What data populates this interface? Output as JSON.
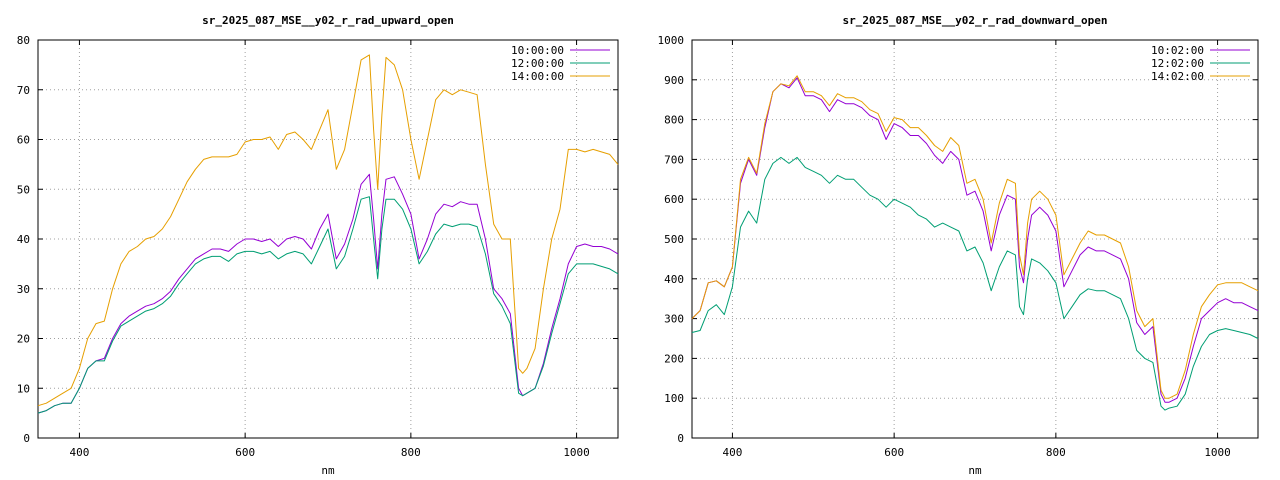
{
  "chart_data": [
    {
      "type": "line",
      "title": "sr_2025_087_MSE__y02_r_rad_upward_open",
      "xlabel": "nm",
      "ylabel": "",
      "xlim": [
        350,
        1050
      ],
      "ylim": [
        0,
        80
      ],
      "xticks": [
        400,
        600,
        800,
        1000
      ],
      "yticks": [
        0,
        10,
        20,
        30,
        40,
        50,
        60,
        70,
        80
      ],
      "grid": true,
      "legend_position": "top-right",
      "x": [
        350,
        360,
        370,
        380,
        390,
        400,
        410,
        420,
        430,
        440,
        450,
        460,
        470,
        480,
        490,
        500,
        510,
        520,
        530,
        540,
        550,
        560,
        570,
        580,
        590,
        600,
        610,
        620,
        630,
        640,
        650,
        660,
        670,
        680,
        690,
        700,
        710,
        720,
        730,
        740,
        750,
        755,
        760,
        765,
        770,
        780,
        790,
        800,
        810,
        820,
        830,
        840,
        850,
        860,
        870,
        880,
        890,
        900,
        910,
        920,
        930,
        935,
        940,
        950,
        960,
        970,
        980,
        990,
        1000,
        1010,
        1020,
        1030,
        1040,
        1050
      ],
      "series": [
        {
          "name": "10:00:00",
          "color": "#9400d3",
          "values": [
            5,
            5.5,
            6.5,
            7,
            7,
            10,
            14,
            15.5,
            16,
            20,
            23,
            24.5,
            25.5,
            26.5,
            27,
            28,
            29.5,
            32,
            34,
            36,
            37,
            38,
            38,
            37.5,
            39,
            40,
            40,
            39.5,
            40,
            38.5,
            40,
            40.5,
            40,
            38,
            42,
            45,
            36,
            39,
            44,
            51,
            53,
            44,
            34,
            45,
            52,
            52.5,
            49,
            45,
            36,
            40,
            45,
            47,
            46.5,
            47.5,
            47,
            47,
            40,
            30,
            28,
            25,
            10,
            8.5,
            9,
            10,
            15,
            22,
            28,
            35,
            38.5,
            39,
            38.5,
            38.5,
            38,
            37
          ]
        },
        {
          "name": "12:00:00",
          "color": "#009e73",
          "values": [
            5,
            5.5,
            6.5,
            7,
            7,
            10,
            14,
            15.5,
            15.5,
            19.5,
            22.5,
            23.5,
            24.5,
            25.5,
            26,
            27,
            28.5,
            31,
            33,
            35,
            36,
            36.5,
            36.5,
            35.5,
            37,
            37.5,
            37.5,
            37,
            37.5,
            36,
            37,
            37.5,
            37,
            35,
            38.5,
            42,
            34,
            36.5,
            42,
            48,
            48.5,
            40,
            32,
            42,
            48,
            48,
            46,
            42,
            35,
            37.5,
            41,
            43,
            42.5,
            43,
            43,
            42.5,
            37,
            29,
            26.5,
            23,
            9,
            8.5,
            9,
            10,
            14.5,
            21,
            27,
            33,
            35,
            35,
            35,
            34.5,
            34,
            33
          ]
        },
        {
          "name": "14:00:00",
          "color": "#e69f00",
          "values": [
            6.5,
            7,
            8,
            9,
            10,
            14,
            20,
            23,
            23.5,
            30,
            35,
            37.5,
            38.5,
            40,
            40.5,
            42,
            44.5,
            48,
            51.5,
            54,
            56,
            56.5,
            56.5,
            56.5,
            57,
            59.5,
            60,
            60,
            60.5,
            58,
            61,
            61.5,
            60,
            58,
            62,
            66,
            54,
            58,
            67,
            76,
            77,
            62,
            50,
            65,
            76.5,
            75,
            70,
            60,
            52,
            60,
            68,
            70,
            69,
            70,
            69.5,
            69,
            55,
            43,
            40,
            40,
            14,
            13,
            14,
            18,
            30,
            40,
            46,
            58,
            58,
            57.5,
            58,
            57.5,
            57,
            55
          ]
        }
      ]
    },
    {
      "type": "line",
      "title": "sr_2025_087_MSE__y02_r_rad_downward_open",
      "xlabel": "nm",
      "ylabel": "",
      "xlim": [
        350,
        1050
      ],
      "ylim": [
        0,
        1000
      ],
      "xticks": [
        400,
        600,
        800,
        1000
      ],
      "yticks": [
        0,
        100,
        200,
        300,
        400,
        500,
        600,
        700,
        800,
        900,
        1000
      ],
      "grid": true,
      "legend_position": "top-right",
      "x": [
        350,
        360,
        370,
        380,
        390,
        400,
        410,
        420,
        430,
        440,
        450,
        460,
        470,
        480,
        490,
        500,
        510,
        520,
        530,
        540,
        550,
        560,
        570,
        580,
        590,
        600,
        610,
        620,
        630,
        640,
        650,
        660,
        670,
        680,
        690,
        700,
        710,
        720,
        730,
        740,
        750,
        755,
        760,
        765,
        770,
        780,
        790,
        800,
        810,
        820,
        830,
        840,
        850,
        860,
        870,
        880,
        890,
        900,
        910,
        920,
        930,
        935,
        940,
        950,
        960,
        970,
        980,
        990,
        1000,
        1010,
        1020,
        1030,
        1040,
        1050
      ],
      "series": [
        {
          "name": "10:02:00",
          "color": "#9400d3",
          "values": [
            300,
            320,
            390,
            395,
            380,
            430,
            640,
            700,
            660,
            780,
            870,
            890,
            880,
            905,
            860,
            860,
            850,
            820,
            850,
            840,
            840,
            830,
            810,
            800,
            750,
            790,
            780,
            760,
            760,
            740,
            710,
            690,
            720,
            700,
            610,
            620,
            570,
            470,
            560,
            610,
            600,
            430,
            390,
            500,
            560,
            580,
            560,
            520,
            380,
            420,
            460,
            480,
            470,
            470,
            460,
            450,
            400,
            290,
            260,
            280,
            110,
            90,
            90,
            100,
            150,
            230,
            300,
            320,
            340,
            350,
            340,
            340,
            330,
            320
          ]
        },
        {
          "name": "12:02:00",
          "color": "#009e73",
          "values": [
            265,
            270,
            320,
            335,
            310,
            380,
            530,
            570,
            540,
            650,
            690,
            705,
            690,
            705,
            680,
            670,
            660,
            640,
            660,
            650,
            650,
            630,
            610,
            600,
            580,
            600,
            590,
            580,
            560,
            550,
            530,
            540,
            530,
            520,
            470,
            480,
            440,
            370,
            430,
            470,
            460,
            330,
            310,
            400,
            450,
            440,
            420,
            390,
            300,
            330,
            360,
            375,
            370,
            370,
            360,
            350,
            300,
            220,
            200,
            190,
            80,
            70,
            75,
            80,
            110,
            180,
            230,
            260,
            270,
            275,
            270,
            265,
            260,
            250
          ]
        },
        {
          "name": "14:02:00",
          "color": "#e69f00",
          "values": [
            300,
            320,
            390,
            395,
            380,
            430,
            650,
            705,
            665,
            790,
            870,
            890,
            885,
            910,
            870,
            870,
            860,
            835,
            865,
            855,
            855,
            845,
            825,
            815,
            770,
            805,
            800,
            780,
            780,
            760,
            735,
            720,
            755,
            735,
            640,
            650,
            600,
            490,
            590,
            650,
            640,
            460,
            410,
            540,
            600,
            620,
            600,
            560,
            410,
            450,
            490,
            520,
            510,
            510,
            500,
            490,
            430,
            320,
            280,
            300,
            120,
            100,
            100,
            110,
            170,
            260,
            330,
            360,
            385,
            390,
            390,
            390,
            380,
            370
          ]
        }
      ]
    }
  ]
}
